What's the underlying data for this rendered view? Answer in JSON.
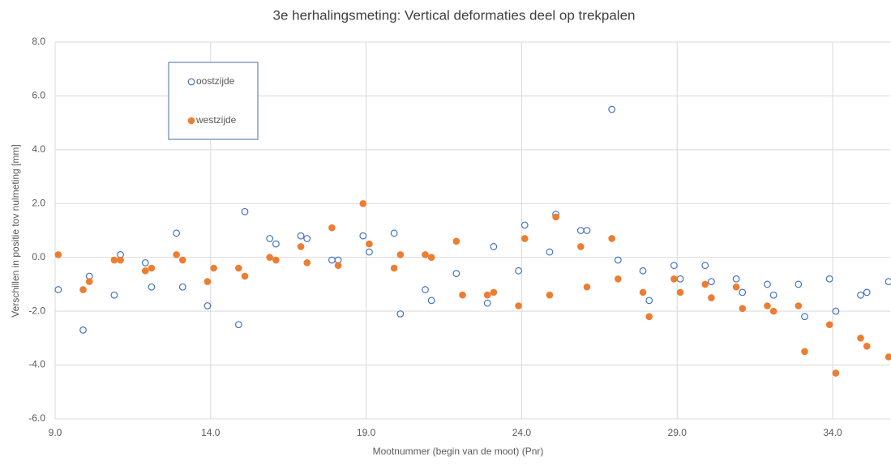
{
  "chart_data": {
    "type": "scatter",
    "title": "3e herhalingsmeting: Vertical deformaties deel op trekpalen",
    "x_label": "Mootnummer (begin van de moot) (Pnr)",
    "y_label": "Verschillen in positie tov nulmeting [mm]",
    "xlim": [
      9,
      35.85
    ],
    "ylim": [
      -6,
      8
    ],
    "xticks": [
      {
        "value": 9,
        "label": "9.0"
      },
      {
        "value": 14,
        "label": "14.0"
      },
      {
        "value": 19,
        "label": "19.0"
      },
      {
        "value": 24,
        "label": "24.0"
      },
      {
        "value": 29,
        "label": "29.0"
      },
      {
        "value": 34,
        "label": "34.0"
      }
    ],
    "yticks": [
      {
        "value": -6,
        "label": "-6.0"
      },
      {
        "value": -4,
        "label": "-4.0"
      },
      {
        "value": -2,
        "label": "-2.0"
      },
      {
        "value": 0,
        "label": "0.0"
      },
      {
        "value": 2,
        "label": "2.0"
      },
      {
        "value": 4,
        "label": "4.0"
      },
      {
        "value": 6,
        "label": "6.0"
      },
      {
        "value": 8,
        "label": "8.0"
      }
    ],
    "grid": true,
    "legend": "upper left",
    "series": [
      {
        "name": "oostzijde",
        "color": "#4472c4",
        "marker": "open",
        "x": [
          9.1,
          9.9,
          10.1,
          10.9,
          11.1,
          11.9,
          12.1,
          12.9,
          13.1,
          13.9,
          14.9,
          15.1,
          15.9,
          16.1,
          16.9,
          17.1,
          17.9,
          18.1,
          18.9,
          19.1,
          19.9,
          20.1,
          20.9,
          21.1,
          21.9,
          22.9,
          23.1,
          23.9,
          24.1,
          24.9,
          25.1,
          25.9,
          26.1,
          26.9,
          27.1,
          27.9,
          28.1,
          28.9,
          29.1,
          29.9,
          30.1,
          30.9,
          31.1,
          31.9,
          32.1,
          32.9,
          33.1,
          33.9,
          34.1,
          34.9,
          35.1,
          35.8
        ],
        "values": [
          -1.2,
          -2.7,
          -0.7,
          -1.4,
          0.1,
          -0.2,
          -1.1,
          0.9,
          -1.1,
          -1.8,
          -2.5,
          1.7,
          0.7,
          0.5,
          0.8,
          0.7,
          -0.1,
          -0.1,
          0.8,
          0.2,
          0.9,
          -2.1,
          -1.2,
          -1.6,
          -0.6,
          -1.7,
          0.4,
          -0.5,
          1.2,
          0.2,
          1.6,
          1.0,
          1.0,
          5.5,
          -0.1,
          -0.5,
          -1.6,
          -0.3,
          -0.8,
          -0.3,
          -0.9,
          -0.8,
          -1.3,
          -1.0,
          -1.4,
          -1.0,
          -2.2,
          -0.8,
          -2.0,
          -1.4,
          -1.3,
          -0.9
        ]
      },
      {
        "name": "westzijde",
        "color": "#ed7d31",
        "marker": "filled",
        "x": [
          9.1,
          9.9,
          10.1,
          10.9,
          11.1,
          11.9,
          12.1,
          12.9,
          13.1,
          13.9,
          14.1,
          14.9,
          15.1,
          15.9,
          16.1,
          16.9,
          17.1,
          17.9,
          18.1,
          18.9,
          19.1,
          19.9,
          20.1,
          20.9,
          21.1,
          21.9,
          22.1,
          22.9,
          23.1,
          23.9,
          24.1,
          24.9,
          25.1,
          25.9,
          26.1,
          26.9,
          27.1,
          27.9,
          28.1,
          28.9,
          29.1,
          29.9,
          30.1,
          30.9,
          31.1,
          31.9,
          32.1,
          32.9,
          33.1,
          33.9,
          34.1,
          34.9,
          35.1,
          35.8
        ],
        "values": [
          0.1,
          -1.2,
          -0.9,
          -0.1,
          -0.1,
          -0.5,
          -0.4,
          0.1,
          -0.1,
          -0.9,
          -0.4,
          -0.4,
          -0.7,
          0.0,
          -0.1,
          0.4,
          -0.2,
          1.1,
          -0.3,
          2.0,
          0.5,
          -0.4,
          0.1,
          0.1,
          0.0,
          0.6,
          -1.4,
          -1.4,
          -1.3,
          -1.8,
          0.7,
          -1.4,
          1.5,
          0.4,
          -1.1,
          0.7,
          -0.8,
          -1.3,
          -2.2,
          -0.8,
          -1.3,
          -1.0,
          -1.5,
          -1.1,
          -1.9,
          -1.8,
          -2.0,
          -1.8,
          -3.5,
          -2.5,
          -4.3,
          -3.0,
          -3.3,
          -3.7
        ]
      }
    ]
  }
}
